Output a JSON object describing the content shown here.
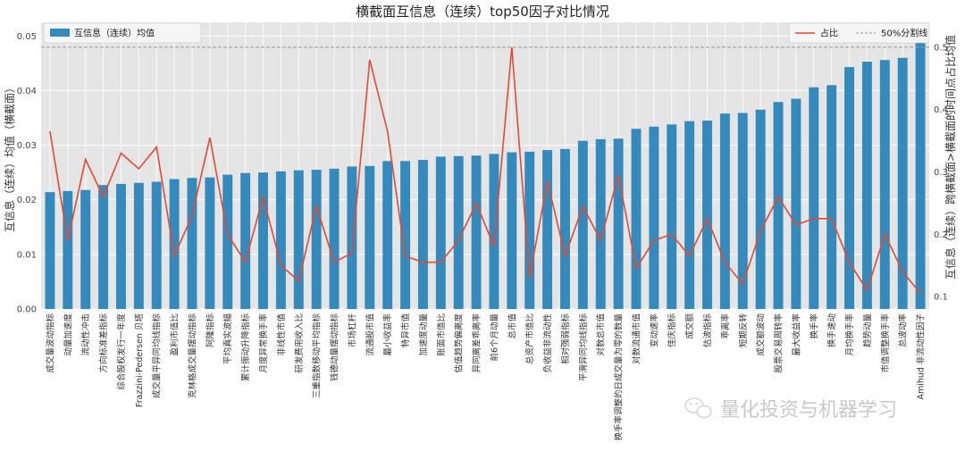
{
  "chart_data": {
    "type": "bar",
    "title": "横截面互信息（连续）top50因子对比情况",
    "ylabel": "互信息（连续）均值（横截面）",
    "y2label": "互信息（连续）跨横截面>横截面的时间点占比均值",
    "ylim": [
      0,
      0.0525
    ],
    "y2lim": [
      0.08,
      0.54
    ],
    "yticks": [
      0.0,
      0.01,
      0.02,
      0.03,
      0.04,
      0.05
    ],
    "yticks_labels": [
      "0.00",
      "0.01",
      "0.02",
      "0.03",
      "0.04",
      "0.05"
    ],
    "y2ticks": [
      0.1,
      0.2,
      0.3,
      0.4,
      0.5
    ],
    "y2ticks_labels": [
      "0.1",
      "0.2",
      "0.3",
      "0.4",
      "0.5"
    ],
    "grid": true,
    "legend_left": "top-left",
    "legend_right": "top-right",
    "categories": [
      "成交量波动指标",
      "动量加速度",
      "流动性冲击",
      "方向标准差指标",
      "综合股权发行一年度",
      "Frazzini-Pedersen 贝塔",
      "成交量平异同均线指标",
      "盈利市值比",
      "克林格成交量摆动指标",
      "阿隆指标",
      "平均真实波幅",
      "累计振动升降指标",
      "月度异常换手率",
      "非线性市值",
      "研发费用收入比",
      "三重指数移动平均指标",
      "钱德动量摆动指标",
      "市场杠杆",
      "流通股市值",
      "最小收益率",
      "特异市值",
      "加速度动量",
      "账面市值比",
      "估值趋势偏离度",
      "异同离差乖离率",
      "前6个月动量",
      "总市值",
      "总资产市值比",
      "负收益非流动性",
      "相对强弱指标",
      "平滑异同均线指标",
      "对数总市值",
      "换手率调整的日成交量为零的数量",
      "对数流通市值",
      "变动速率",
      "佳庆指标",
      "成交额",
      "估波指标",
      "乖离率",
      "短期反转",
      "成交额波动",
      "股票交易周转率",
      "最大收益率",
      "换手率",
      "换手速动",
      "月均换手率",
      "趋势动量",
      "市值调整换手率",
      "总波动率",
      "Amihud 非流动性因子"
    ],
    "series": [
      {
        "name": "互信息（连续）均值",
        "type": "bar",
        "color": "#348ABD",
        "values": [
          0.0214,
          0.0216,
          0.0218,
          0.0227,
          0.0229,
          0.0231,
          0.0233,
          0.0238,
          0.024,
          0.0241,
          0.0246,
          0.0249,
          0.025,
          0.0252,
          0.0254,
          0.0255,
          0.0257,
          0.0261,
          0.0262,
          0.0271,
          0.0271,
          0.0273,
          0.0279,
          0.028,
          0.0281,
          0.0284,
          0.0287,
          0.0288,
          0.0291,
          0.0293,
          0.0308,
          0.0311,
          0.0312,
          0.033,
          0.0334,
          0.0338,
          0.0344,
          0.0345,
          0.0358,
          0.0359,
          0.0365,
          0.0379,
          0.0385,
          0.0406,
          0.041,
          0.0443,
          0.0453,
          0.0456,
          0.046,
          0.0492
        ]
      },
      {
        "name": "占比",
        "type": "line",
        "axis": "right",
        "color": "#E24A33",
        "values": [
          0.365,
          0.19,
          0.32,
          0.26,
          0.33,
          0.305,
          0.34,
          0.165,
          0.23,
          0.355,
          0.2,
          0.155,
          0.26,
          0.15,
          0.125,
          0.245,
          0.155,
          0.17,
          0.48,
          0.365,
          0.165,
          0.155,
          0.155,
          0.19,
          0.25,
          0.18,
          0.5,
          0.13,
          0.285,
          0.165,
          0.245,
          0.19,
          0.295,
          0.145,
          0.19,
          0.2,
          0.165,
          0.225,
          0.155,
          0.12,
          0.205,
          0.26,
          0.215,
          0.225,
          0.225,
          0.155,
          0.11,
          0.2,
          0.14,
          0.105
        ]
      },
      {
        "name": "50%分割线",
        "type": "hline",
        "axis": "right",
        "color": "#999999",
        "value": 0.5
      }
    ]
  },
  "watermark": {
    "text": "量化投资与机器学习",
    "icon": "wechat-icon"
  }
}
